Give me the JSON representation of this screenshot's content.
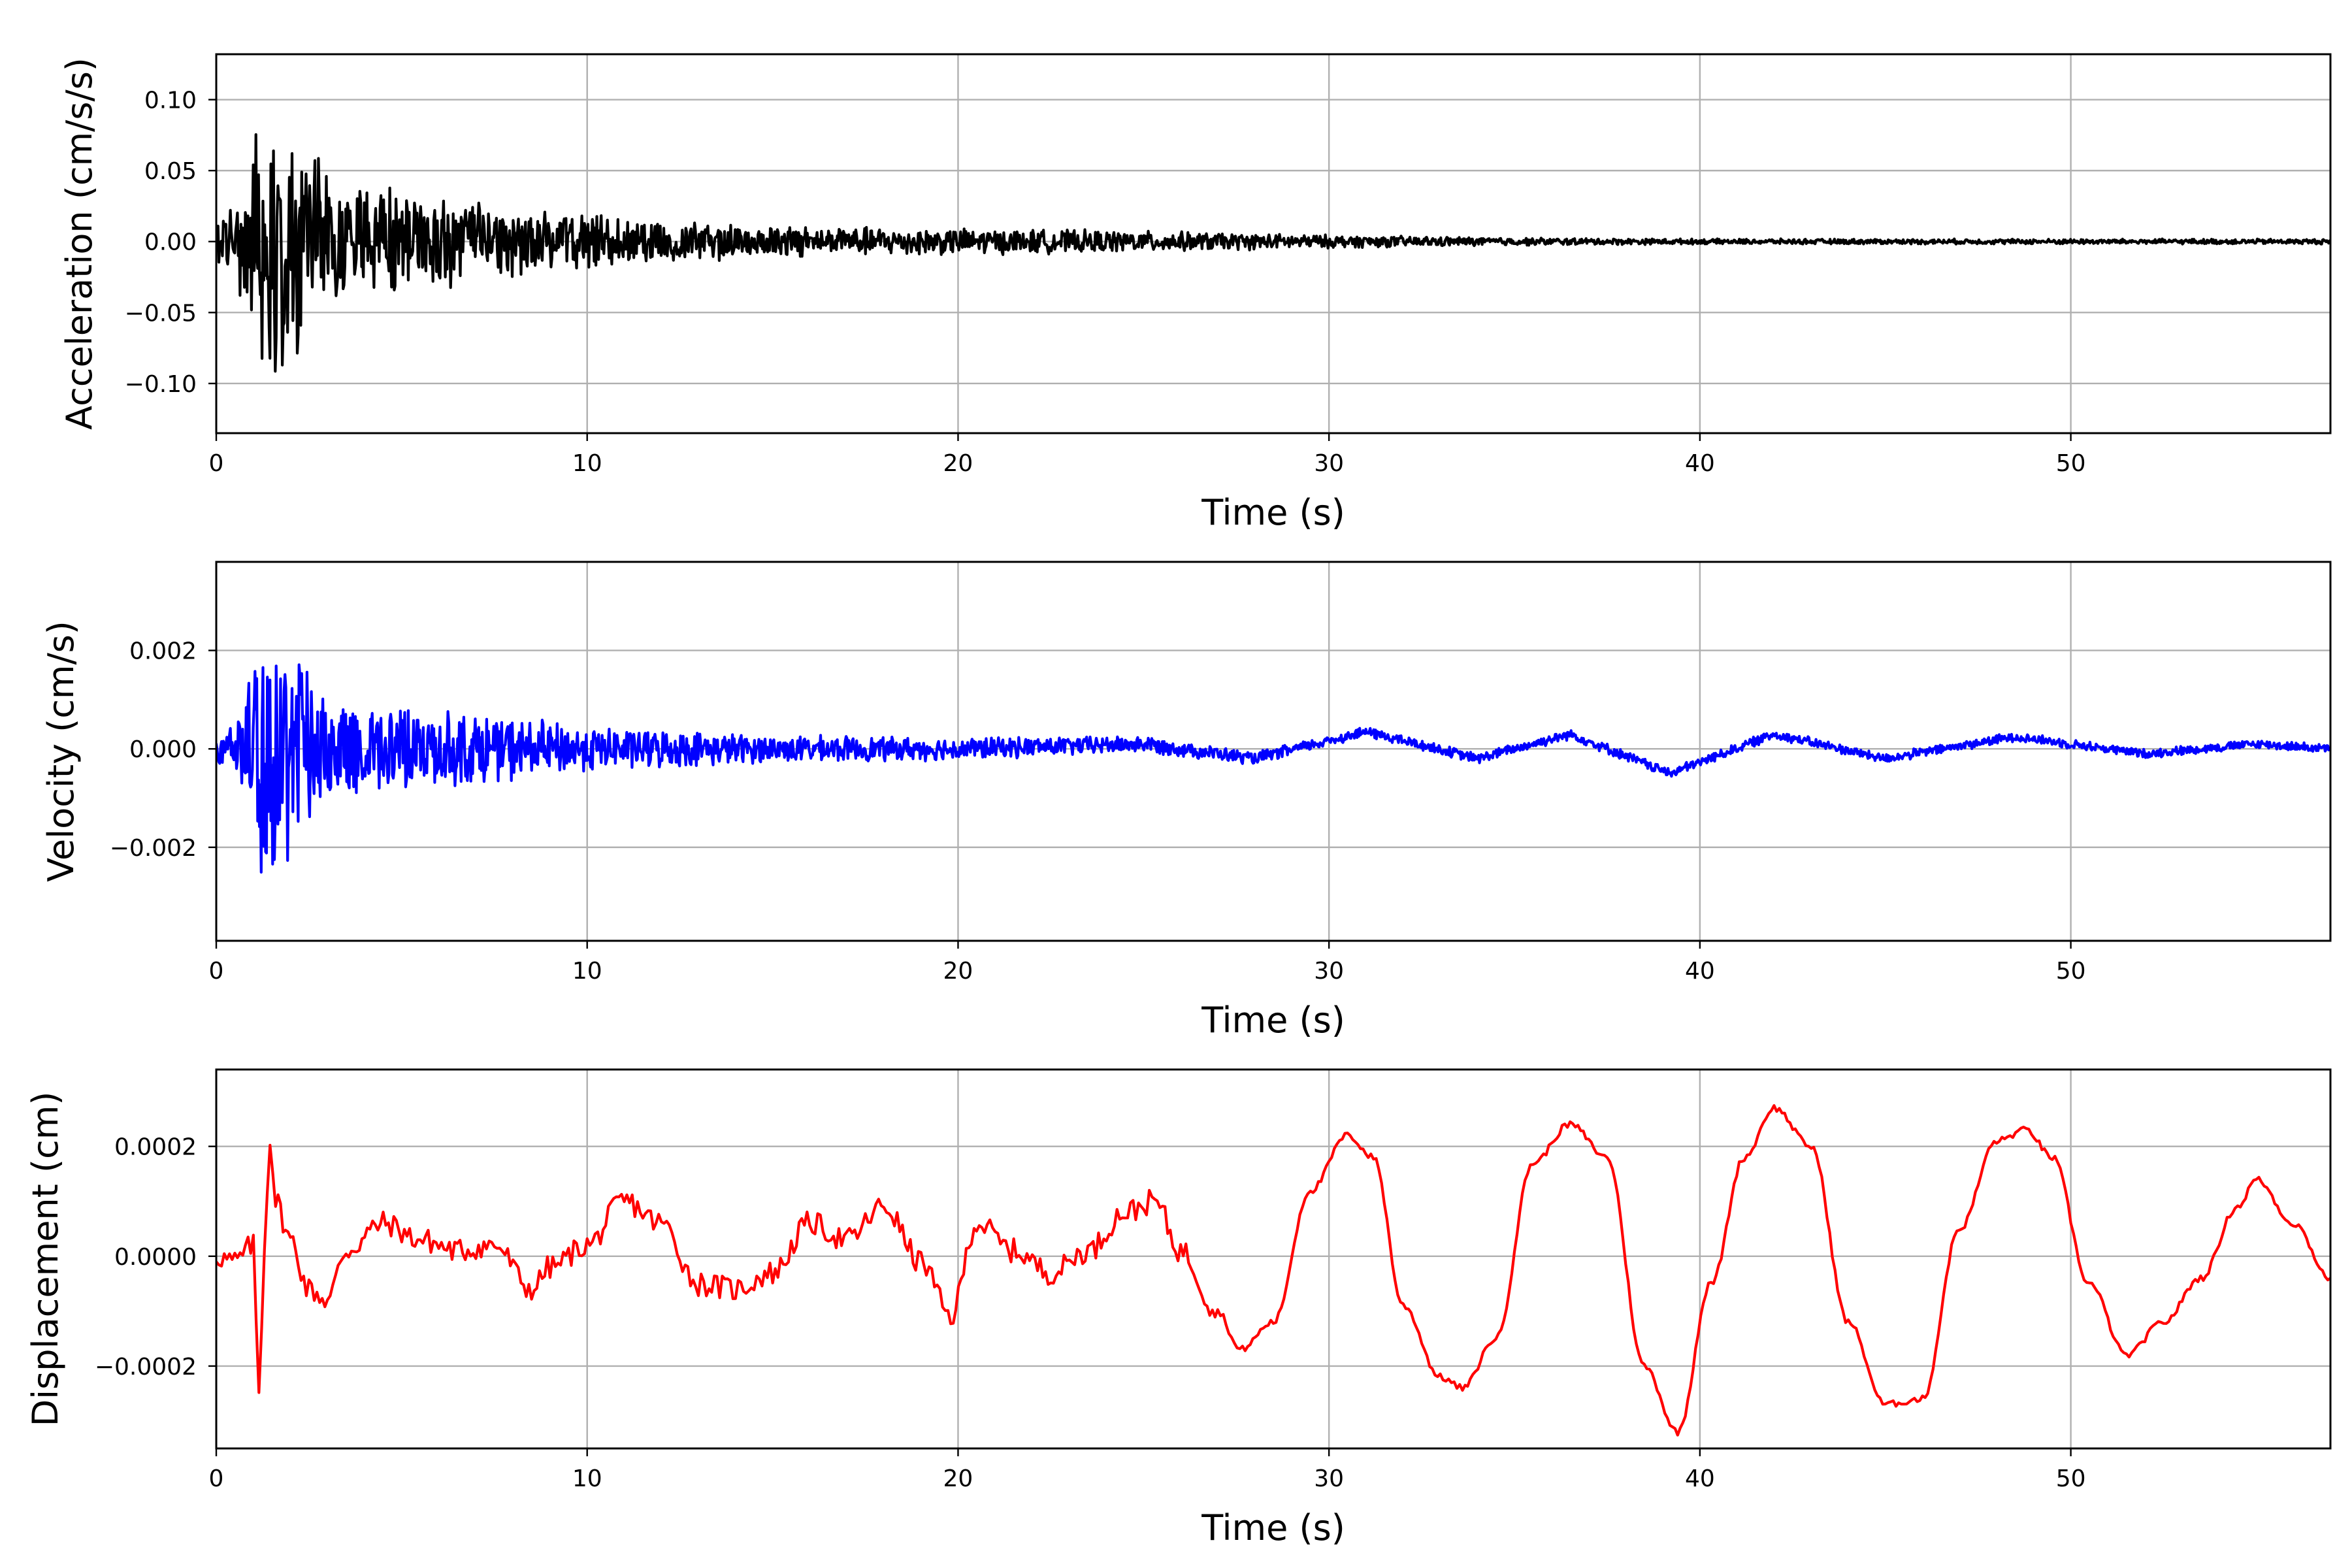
{
  "chart_data": [
    {
      "type": "line",
      "title": "",
      "xlabel": "Time (s)",
      "ylabel": "Acceleration (cm/s/s)",
      "xlim": [
        0,
        57
      ],
      "ylim": [
        -0.135,
        0.132
      ],
      "xticks": [
        0,
        10,
        20,
        30,
        40,
        50
      ],
      "yticks": [
        -0.1,
        -0.05,
        0.0,
        0.05,
        0.1
      ],
      "ytick_labels": [
        "−0.10",
        "−0.05",
        "0.00",
        "0.05",
        "0.10"
      ],
      "grid": true,
      "color": "#000000",
      "envelope": {
        "t": [
          0,
          0.5,
          1.0,
          1.4,
          2.0,
          3.0,
          5.0,
          7.0,
          10.0,
          15.0,
          20.0,
          25.0,
          30.0,
          35.0,
          40.0,
          57.0
        ],
        "amplitude": [
          0.02,
          0.03,
          0.08,
          0.11,
          0.09,
          0.05,
          0.04,
          0.03,
          0.02,
          0.012,
          0.01,
          0.008,
          0.005,
          0.003,
          0.002,
          0.002
        ]
      }
    },
    {
      "type": "line",
      "title": "",
      "xlabel": "Time (s)",
      "ylabel": "Velocity (cm/s)",
      "xlim": [
        0,
        57
      ],
      "ylim": [
        -0.0039,
        0.0038
      ],
      "xticks": [
        0,
        10,
        20,
        30,
        40,
        50
      ],
      "yticks": [
        -0.002,
        0.0,
        0.002
      ],
      "ytick_labels": [
        "−0.002",
        "0.000",
        "0.002"
      ],
      "grid": true,
      "color": "#0000ff",
      "envelope": {
        "t": [
          0,
          0.5,
          1.0,
          1.3,
          2.0,
          3.0,
          5.0,
          7.0,
          10.0,
          15.0,
          20.0,
          30.0,
          57.0
        ],
        "amplitude": [
          0.0003,
          0.0006,
          0.0025,
          0.0035,
          0.0022,
          0.0012,
          0.0009,
          0.0008,
          0.0005,
          0.0003,
          0.00025,
          0.00012,
          0.0001
        ]
      },
      "trend": {
        "t": [
          0,
          20,
          25,
          28,
          31,
          34,
          36.5,
          39.2,
          42,
          45,
          48.5,
          52,
          55,
          57
        ],
        "v": [
          0,
          0,
          0.0001,
          -0.0002,
          0.00035,
          -0.0002,
          0.0003,
          -0.0005,
          0.0003,
          -0.0002,
          0.00025,
          -0.0001,
          0.0001,
          0.0
        ]
      }
    },
    {
      "type": "line",
      "title": "",
      "xlabel": "Time (s)",
      "ylabel": "Displacement (cm)",
      "xlim": [
        0,
        57
      ],
      "ylim": [
        -0.00035,
        0.00034
      ],
      "xticks": [
        0,
        10,
        20,
        30,
        40,
        50
      ],
      "yticks": [
        -0.0002,
        0.0,
        0.0002
      ],
      "ytick_labels": [
        "−0.0002",
        "0.0000",
        "0.0002"
      ],
      "grid": true,
      "color": "#ff0000",
      "x": [
        0,
        0.5,
        1.0,
        1.15,
        1.3,
        1.45,
        1.6,
        2.0,
        2.5,
        3.0,
        3.5,
        4.5,
        5.5,
        6.5,
        7.5,
        8.5,
        9.0,
        10.0,
        11.0,
        12.0,
        13.0,
        14.0,
        15.0,
        16.0,
        17.0,
        18.0,
        19.0,
        19.8,
        20.5,
        21.5,
        22.5,
        23.5,
        24.5,
        25.3,
        26.0,
        27.0,
        27.6,
        28.5,
        29.5,
        30.5,
        31.2,
        32.0,
        33.0,
        33.6,
        34.5,
        35.5,
        36.5,
        37.5,
        38.5,
        39.4,
        40.3,
        41.2,
        42.0,
        43.0,
        44.0,
        45.0,
        46.0,
        47.0,
        48.0,
        48.8,
        49.5,
        50.5,
        51.5,
        52.5,
        53.5,
        54.5,
        55.0,
        56.0,
        57.0
      ],
      "y": [
        0.0,
        -1e-05,
        2e-05,
        -0.00025,
        2e-05,
        0.00022,
        0.0001,
        3e-05,
        -6e-05,
        -8e-05,
        1e-05,
        6e-05,
        3e-05,
        1e-05,
        2e-05,
        -6e-05,
        -2e-05,
        2e-05,
        0.0001,
        6e-05,
        -5e-05,
        -6e-05,
        -3e-05,
        6e-05,
        3e-05,
        9e-05,
        -1e-05,
        -0.00011,
        6e-05,
        1e-05,
        -3e-05,
        1e-05,
        8e-05,
        0.0001,
        1e-05,
        -0.0001,
        -0.00017,
        -0.00012,
        0.00012,
        0.00022,
        0.00018,
        -9e-05,
        -0.00022,
        -0.00024,
        -0.00015,
        0.00017,
        0.00024,
        0.00018,
        -0.0002,
        -0.00032,
        -5e-05,
        0.00018,
        0.00027,
        0.0002,
        -0.00012,
        -0.00027,
        -0.00026,
        5e-05,
        0.00021,
        0.00023,
        0.00018,
        -5e-05,
        -0.00018,
        -0.00012,
        -4e-05,
        9e-05,
        0.00014,
        6e-05,
        -4e-05
      ]
    }
  ]
}
